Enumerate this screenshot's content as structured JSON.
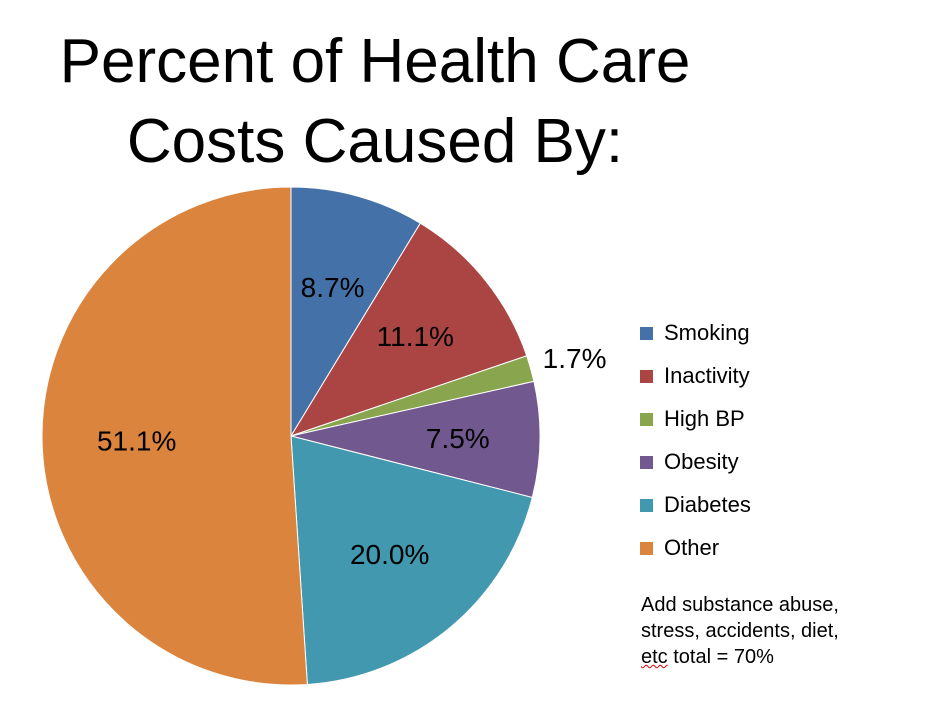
{
  "chart_data": {
    "type": "pie",
    "title_lines": [
      "Percent of Health Care",
      "Costs Caused By:"
    ],
    "slices": [
      {
        "label": "Smoking",
        "value": 8.7,
        "data_label": "8.7%",
        "color": "#4472A8"
      },
      {
        "label": "Inactivity",
        "value": 11.1,
        "data_label": "11.1%",
        "color": "#AA4543"
      },
      {
        "label": "High BP",
        "value": 1.7,
        "data_label": "1.7%",
        "color": "#89A54E"
      },
      {
        "label": "Obesity",
        "value": 7.5,
        "data_label": "7.5%",
        "color": "#71588F"
      },
      {
        "label": "Diabetes",
        "value": 20.0,
        "data_label": "20.0%",
        "color": "#4198AF"
      },
      {
        "label": "Other",
        "value": 51.1,
        "data_label": "51.1%",
        "color": "#DB843D"
      }
    ],
    "start_angle_deg": 0,
    "direction": "clockwise",
    "legend_position": "right"
  },
  "note": {
    "line1": "Add substance abuse,",
    "line2": "stress, accidents, diet,",
    "line3_prefix": "etc",
    "line3_suffix": "  total = 70%"
  }
}
